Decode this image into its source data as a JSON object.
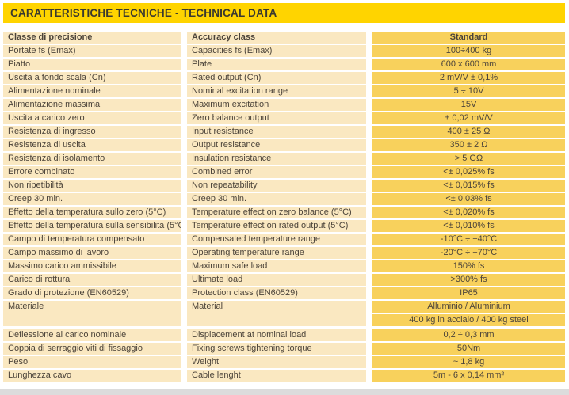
{
  "banner": {
    "title": "CARATTERISTICHE TECNICHE - TECHNICAL DATA"
  },
  "table": {
    "header": {
      "it": "Classe di precisione",
      "en": "Accuracy class",
      "value": "Standard"
    },
    "rows": [
      {
        "it": "Portate fs (Emax)",
        "en": "Capacities fs (Emax)",
        "value": "100÷400 kg"
      },
      {
        "it": "Piatto",
        "en": "Plate",
        "value": "600 x 600 mm"
      },
      {
        "it": "Uscita a fondo scala (Cn)",
        "en": "Rated output (Cn)",
        "value": "2 mV/V ± 0,1%"
      },
      {
        "it": "Alimentazione nominale",
        "en": "Nominal excitation range",
        "value": "5 ÷ 10V"
      },
      {
        "it": "Alimentazione massima",
        "en": "Maximum excitation",
        "value": "15V"
      },
      {
        "it": "Uscita a carico zero",
        "en": "Zero balance output",
        "value": "± 0,02 mV/V"
      },
      {
        "it": "Resistenza di ingresso",
        "en": "Input resistance",
        "value": "400 ± 25 Ω"
      },
      {
        "it": "Resistenza di uscita",
        "en": "Output resistance",
        "value": "350 ± 2 Ω"
      },
      {
        "it": "Resistenza di isolamento",
        "en": "Insulation resistance",
        "value": "> 5 GΩ"
      },
      {
        "it": "Errore combinato",
        "en": "Combined error",
        "value": "<± 0,025% fs"
      },
      {
        "it": "Non ripetibilità",
        "en": "Non repeatability",
        "value": "<± 0,015% fs"
      },
      {
        "it": "Creep 30 min.",
        "en": "Creep 30 min.",
        "value": "<± 0,03% fs"
      },
      {
        "it": "Effetto della temperatura sullo zero (5°C)",
        "en": "Temperature effect on zero balance (5°C)",
        "value": "<± 0,020% fs"
      },
      {
        "it": "Effetto della temperatura sulla sensibilità (5°C)",
        "en": "Temperature effect on rated output (5°C)",
        "value": "<± 0,010% fs"
      },
      {
        "it": "Campo di temperatura compensato",
        "en": "Compensated temperature range",
        "value": "-10°C ÷ +40°C"
      },
      {
        "it": "Campo massimo di lavoro",
        "en": "Operating temperature range",
        "value": "-20°C ÷ +70°C"
      },
      {
        "it": "Massimo carico ammissibile",
        "en": "Maximum safe load",
        "value": "150% fs"
      },
      {
        "it": "Carico di rottura",
        "en": "Ultimate load",
        "value": ">300% fs"
      },
      {
        "it": "Grado di protezione (EN60529)",
        "en": "Protection class (EN60529)",
        "value": "IP65"
      },
      {
        "it": "Materiale",
        "en": "Material",
        "values": [
          "Alluminio / Aluminium",
          "400 kg in acciaio / 400 kg steel"
        ]
      },
      {
        "it": "Deflessione al carico nominale",
        "en": "Displacement at nominal load",
        "value": "0,2 ÷ 0,3 mm",
        "gap_above": true
      },
      {
        "it": "Coppia di serraggio viti di fissaggio",
        "en": "Fixing screws tightening torque",
        "value": "50Nm"
      },
      {
        "it": "Peso",
        "en": "Weight",
        "value": "~ 1,8 kg"
      },
      {
        "it": "Lunghezza cavo",
        "en": "Cable lenght",
        "value": "5m - 6 x 0,14 mm²"
      }
    ]
  },
  "colors": {
    "banner_bg": "#FFD400",
    "label_cell_bg": "#FAE8C1",
    "value_cell_bg": "#F8D15C",
    "banner_text": "#3A392F",
    "body_text": "#4C443A",
    "footer_strip": "#DCDCDC"
  }
}
